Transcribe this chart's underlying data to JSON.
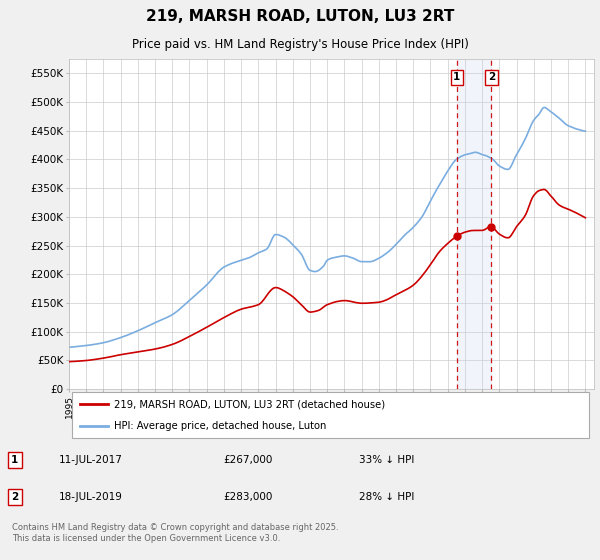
{
  "title": "219, MARSH ROAD, LUTON, LU3 2RT",
  "subtitle": "Price paid vs. HM Land Registry's House Price Index (HPI)",
  "ylabel_values": [
    "£0",
    "£50K",
    "£100K",
    "£150K",
    "£200K",
    "£250K",
    "£300K",
    "£350K",
    "£400K",
    "£450K",
    "£500K",
    "£550K"
  ],
  "ylim": [
    0,
    575000
  ],
  "yticks": [
    0,
    50000,
    100000,
    150000,
    200000,
    250000,
    300000,
    350000,
    400000,
    450000,
    500000,
    550000
  ],
  "legend_line1": "219, MARSH ROAD, LUTON, LU3 2RT (detached house)",
  "legend_line2": "HPI: Average price, detached house, Luton",
  "annotation1_date": "11-JUL-2017",
  "annotation1_price": "£267,000",
  "annotation1_hpi": "33% ↓ HPI",
  "annotation2_date": "18-JUL-2019",
  "annotation2_price": "£283,000",
  "annotation2_hpi": "28% ↓ HPI",
  "footer": "Contains HM Land Registry data © Crown copyright and database right 2025.\nThis data is licensed under the Open Government Licence v3.0.",
  "red_color": "#cc0000",
  "blue_color": "#7aade0",
  "vline_color": "#cc0000",
  "fill_color": "#c8d8f0",
  "background_color": "#ffffff",
  "fig_background": "#f0f0f0",
  "grid_color": "#cccccc",
  "point1_x": 2017.53,
  "point1_y": 267000,
  "point2_x": 2019.54,
  "point2_y": 283000,
  "xmin": 1995,
  "xmax": 2025.5
}
